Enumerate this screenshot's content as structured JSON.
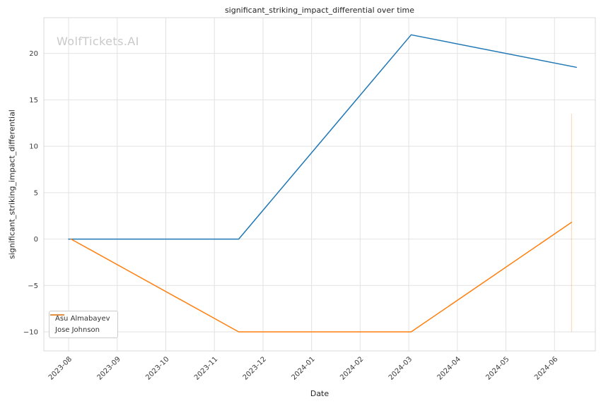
{
  "watermark": "WolfTickets.AI",
  "chart_data": {
    "type": "line",
    "title": "significant_striking_impact_differential over time",
    "xlabel": "Date",
    "ylabel": "significant_striking_impact_differential",
    "grid": true,
    "legend_position": "lower left",
    "x_tick_labels": [
      "2023-08",
      "2023-09",
      "2023-10",
      "2023-11",
      "2023-12",
      "2024-01",
      "2024-02",
      "2024-03",
      "2024-04",
      "2024-05",
      "2024-06"
    ],
    "x_tick_positions": [
      0,
      1,
      2,
      3,
      4,
      5,
      6,
      7,
      8,
      9,
      10
    ],
    "y_tick_values": [
      -10,
      -5,
      0,
      5,
      10,
      15,
      20
    ],
    "y_tick_labels": [
      "−10",
      "−5",
      "0",
      "5",
      "10",
      "15",
      "20"
    ],
    "xlim": [
      -0.51,
      10.84
    ],
    "ylim": [
      -12.05,
      23.85
    ],
    "series": [
      {
        "name": "Asu Almabayev",
        "color": "#1f77b4",
        "points": [
          [
            0,
            0
          ],
          [
            1,
            0
          ],
          [
            2,
            0
          ],
          [
            3,
            0
          ],
          [
            3.5,
            0
          ],
          [
            7.05,
            22
          ],
          [
            10.45,
            18.5
          ]
        ]
      },
      {
        "name": "Jose Johnson",
        "color": "#ff7f0e",
        "points": [
          [
            0.05,
            0
          ],
          [
            3.5,
            -10
          ],
          [
            7.05,
            -10
          ],
          [
            10.35,
            1.8
          ]
        ]
      }
    ],
    "annotations": [
      {
        "type": "vline-segment",
        "x": 10.35,
        "y1": -10,
        "y2": 13.5,
        "color": "#ff7f0e",
        "opacity": 0.35
      }
    ]
  }
}
